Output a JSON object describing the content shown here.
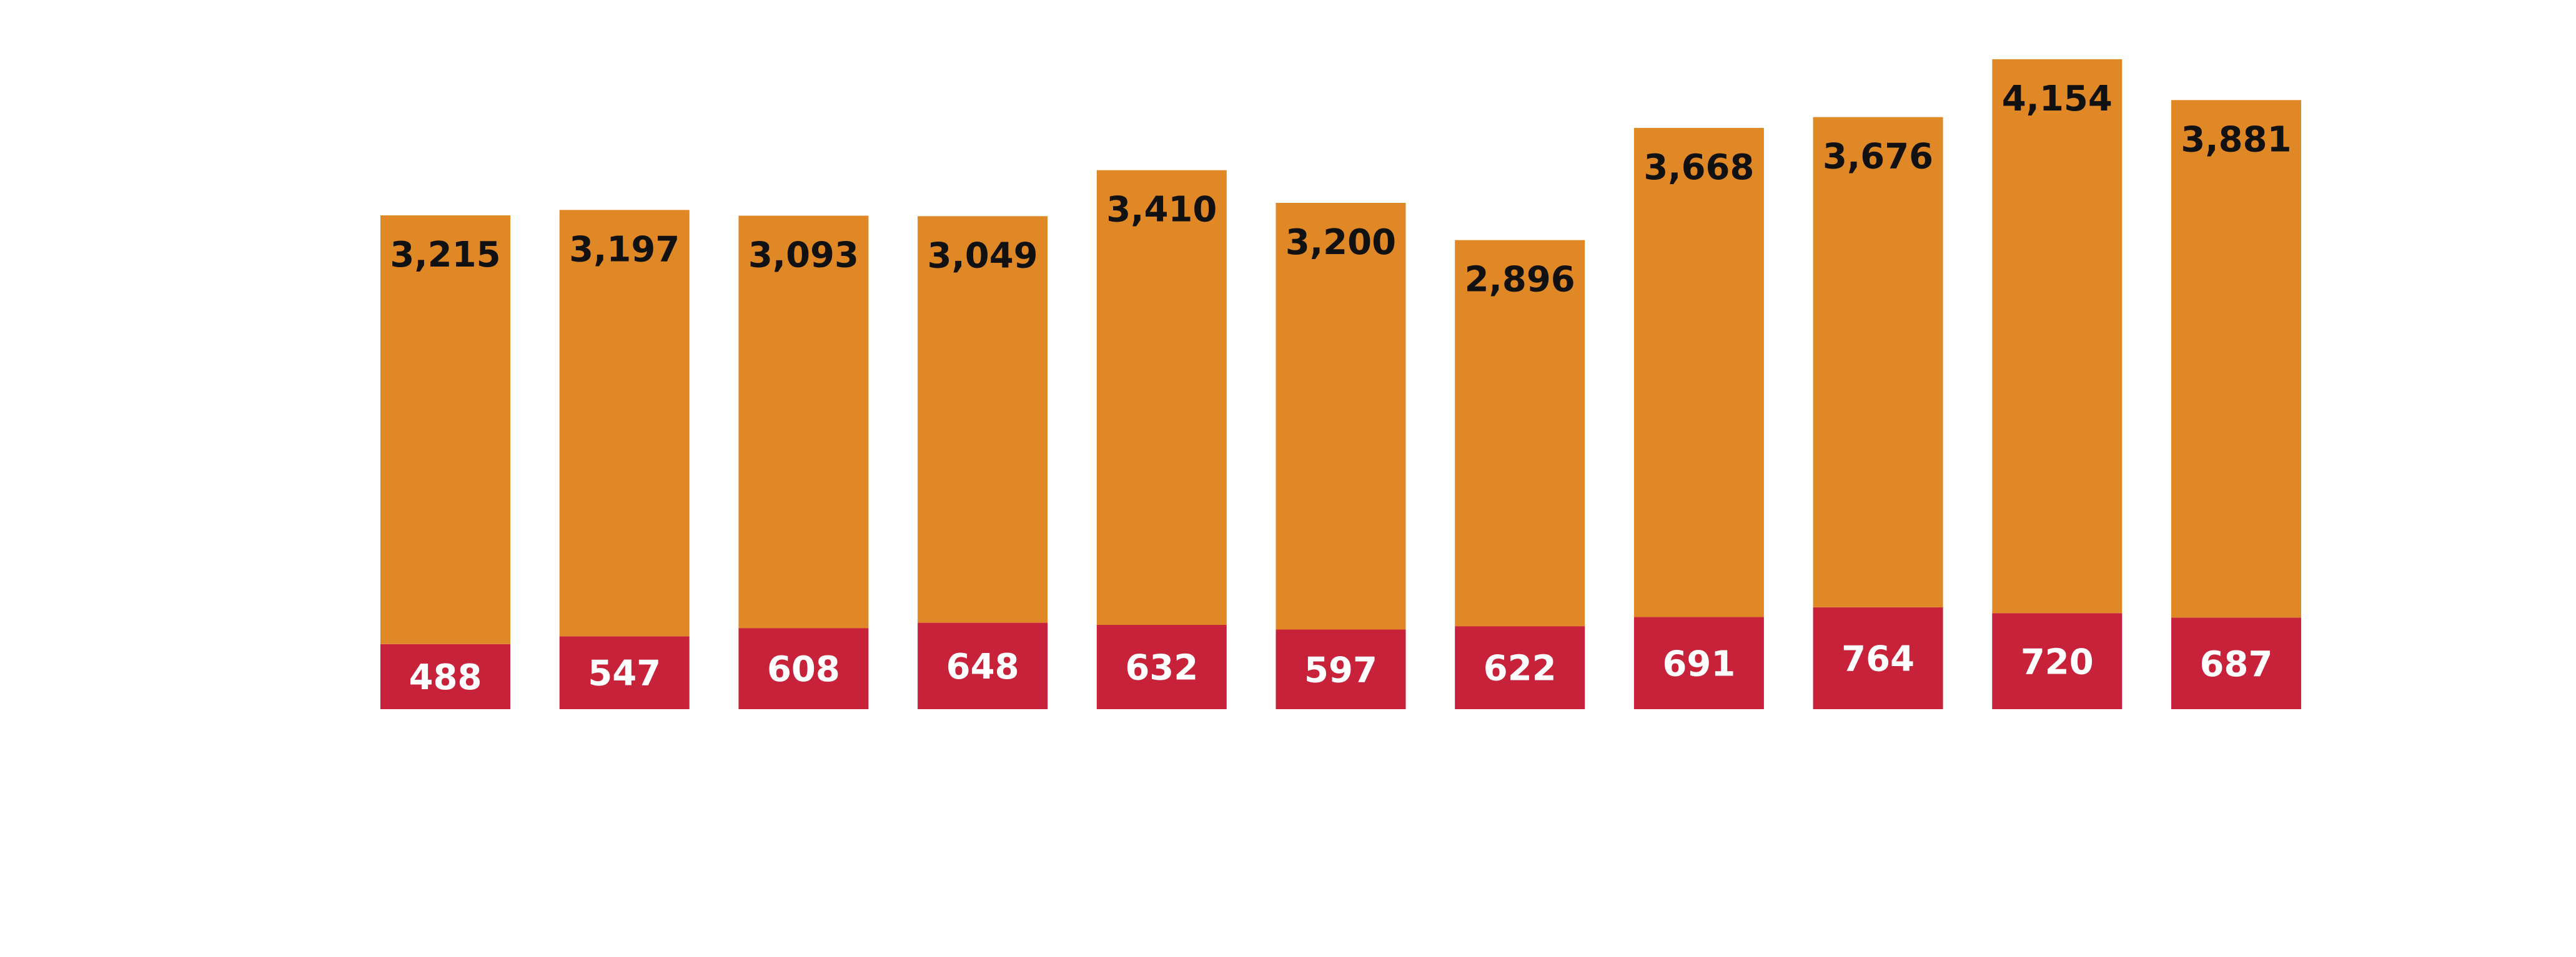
{
  "chart_data": {
    "type": "bar",
    "stacked": true,
    "title": "",
    "xlabel": "",
    "ylabel": "",
    "legend": "none",
    "grid": false,
    "ylim": [
      0,
      5000
    ],
    "categories": [
      "",
      "",
      "",
      "",
      "",
      "",
      "",
      "",
      "",
      "",
      ""
    ],
    "series": [
      {
        "values": [
          488,
          547,
          608,
          648,
          632,
          597,
          622,
          691,
          764,
          720,
          687
        ],
        "color": "#c8223a",
        "label_color": "#ffffff"
      },
      {
        "values": [
          3215,
          3197,
          3093,
          3049,
          3410,
          3200,
          2896,
          3668,
          3676,
          4154,
          3881
        ],
        "color": "#e08826",
        "label_color": "#111111"
      }
    ]
  }
}
